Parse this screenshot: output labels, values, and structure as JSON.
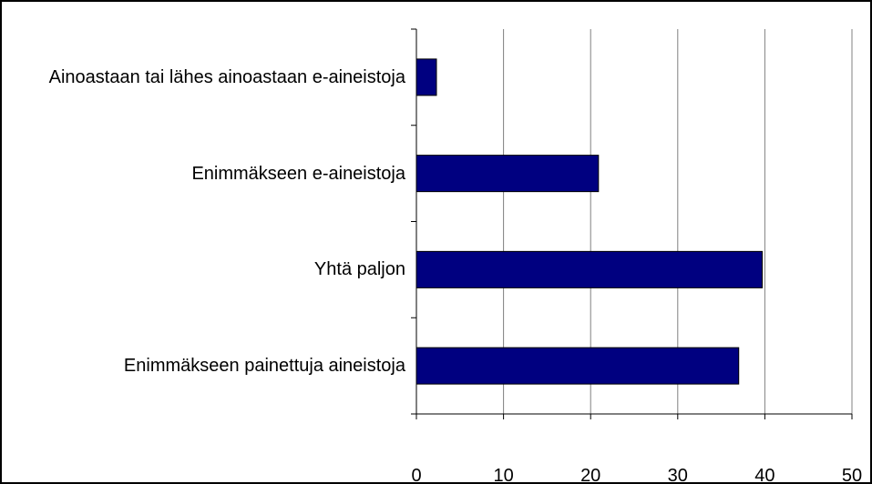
{
  "chart_data": {
    "type": "bar",
    "orientation": "horizontal",
    "categories": [
      "Ainoastaan tai lähes ainoastaan e-aineistoja",
      "Enimmäkseen e-aineistoja",
      "Yhtä paljon",
      "Enimmäkseen painettuja aineistoja"
    ],
    "values": [
      2.3,
      20.9,
      39.7,
      37.0
    ],
    "color": "#000080",
    "xlim": [
      0,
      50
    ],
    "xticks": [
      0,
      10,
      20,
      30,
      40,
      50
    ],
    "grid": true
  }
}
